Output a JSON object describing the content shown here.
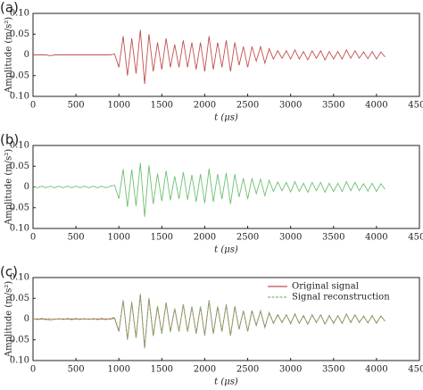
{
  "chart_data": [
    {
      "type": "line",
      "panel_label": "(a)",
      "x_label": "t (μs)",
      "y_label": "Amplitude (m/s²)",
      "xlim": [
        0,
        4500
      ],
      "ylim": [
        -0.1,
        0.1
      ],
      "xticks": [
        0,
        500,
        1000,
        1500,
        2000,
        2500,
        3000,
        3500,
        4000,
        4500
      ],
      "yticks": [
        {
          "value": 0.1,
          "label": "0.10"
        },
        0.05,
        0,
        {
          "value": -0.05,
          "label": "0.05"
        },
        {
          "value": -0.1,
          "label": "0.10"
        }
      ],
      "x": [
        0,
        50,
        100,
        150,
        200,
        250,
        300,
        350,
        400,
        450,
        500,
        550,
        600,
        650,
        700,
        750,
        800,
        850,
        900,
        950,
        1000,
        1050,
        1100,
        1150,
        1200,
        1250,
        1300,
        1350,
        1400,
        1450,
        1500,
        1550,
        1600,
        1650,
        1700,
        1750,
        1800,
        1850,
        1900,
        1950,
        2000,
        2050,
        2100,
        2150,
        2200,
        2250,
        2300,
        2350,
        2400,
        2450,
        2500,
        2550,
        2600,
        2650,
        2700,
        2750,
        2800,
        2850,
        2900,
        2950,
        3000,
        3050,
        3100,
        3150,
        3200,
        3250,
        3300,
        3350,
        3400,
        3450,
        3500,
        3550,
        3600,
        3650,
        3700,
        3750,
        3800,
        3850,
        3900,
        3950,
        4000,
        4050,
        4100
      ],
      "series": [
        {
          "color": "#c0504d",
          "values": [
            0,
            0,
            0,
            0,
            -0.002,
            0,
            0,
            0,
            0,
            0,
            0,
            0,
            0,
            0,
            0,
            0,
            0,
            0,
            0,
            0.002,
            -0.03,
            0.045,
            -0.05,
            0.04,
            -0.045,
            0.06,
            -0.07,
            0.05,
            -0.04,
            0.03,
            -0.035,
            0.04,
            -0.03,
            0.025,
            -0.03,
            0.035,
            -0.03,
            0.03,
            -0.035,
            0.03,
            -0.04,
            0.045,
            -0.035,
            0.03,
            -0.03,
            0.035,
            -0.04,
            0.03,
            -0.025,
            0.02,
            -0.03,
            0.02,
            -0.015,
            0.02,
            -0.02,
            0.015,
            -0.01,
            0.01,
            -0.008,
            0.01,
            -0.01,
            0.012,
            -0.01,
            0.008,
            -0.012,
            0.01,
            -0.008,
            0.01,
            -0.012,
            0.008,
            -0.01,
            0.008,
            -0.01,
            0.012,
            -0.008,
            0.01,
            -0.008,
            0.007,
            -0.009,
            0.008,
            -0.01,
            0.007,
            -0.005
          ]
        }
      ],
      "grid": false
    },
    {
      "type": "line",
      "panel_label": "(b)",
      "x_label": "t (μs)",
      "y_label": "Amplitude (m/s²)",
      "xlim": [
        0,
        4500
      ],
      "ylim": [
        -0.1,
        0.1
      ],
      "xticks": [
        0,
        500,
        1000,
        1500,
        2000,
        2500,
        3000,
        3500,
        4000,
        4500
      ],
      "yticks": [
        {
          "value": 0.1,
          "label": "0.10"
        },
        0.05,
        0,
        {
          "value": -0.05,
          "label": "0.05"
        },
        {
          "value": -0.1,
          "label": "0.10"
        }
      ],
      "x": [
        0,
        50,
        100,
        150,
        200,
        250,
        300,
        350,
        400,
        450,
        500,
        550,
        600,
        650,
        700,
        750,
        800,
        850,
        900,
        950,
        1000,
        1050,
        1100,
        1150,
        1200,
        1250,
        1300,
        1350,
        1400,
        1450,
        1500,
        1550,
        1600,
        1650,
        1700,
        1750,
        1800,
        1850,
        1900,
        1950,
        2000,
        2050,
        2100,
        2150,
        2200,
        2250,
        2300,
        2350,
        2400,
        2450,
        2500,
        2550,
        2600,
        2650,
        2700,
        2750,
        2800,
        2850,
        2900,
        2950,
        3000,
        3050,
        3100,
        3150,
        3200,
        3250,
        3300,
        3350,
        3400,
        3450,
        3500,
        3550,
        3600,
        3650,
        3700,
        3750,
        3800,
        3850,
        3900,
        3950,
        4000,
        4050,
        4100
      ],
      "series": [
        {
          "color": "#6fbf73",
          "values": [
            0.002,
            -0.002,
            0.002,
            -0.002,
            0.002,
            -0.002,
            0.002,
            -0.002,
            0.002,
            -0.002,
            0.002,
            -0.002,
            0.002,
            -0.002,
            0.002,
            -0.002,
            0.002,
            -0.002,
            0.002,
            0.004,
            -0.028,
            0.043,
            -0.048,
            0.042,
            -0.046,
            0.058,
            -0.072,
            0.052,
            -0.041,
            0.032,
            -0.034,
            0.039,
            -0.032,
            0.026,
            -0.029,
            0.036,
            -0.031,
            0.029,
            -0.036,
            0.031,
            -0.039,
            0.044,
            -0.036,
            0.031,
            -0.029,
            0.034,
            -0.041,
            0.031,
            -0.024,
            0.021,
            -0.029,
            0.021,
            -0.016,
            0.019,
            -0.021,
            0.016,
            -0.011,
            0.012,
            -0.009,
            0.011,
            -0.012,
            0.013,
            -0.011,
            0.009,
            -0.013,
            0.011,
            -0.009,
            0.011,
            -0.013,
            0.009,
            -0.011,
            0.009,
            -0.011,
            0.013,
            -0.009,
            0.011,
            -0.009,
            0.008,
            -0.01,
            0.009,
            -0.011,
            0.008,
            -0.006
          ]
        }
      ],
      "grid": false
    },
    {
      "type": "line",
      "panel_label": "(c)",
      "x_label": "t (μs)",
      "y_label": "Amplitude (m/s²)",
      "xlim": [
        0,
        4500
      ],
      "ylim": [
        -0.1,
        0.1
      ],
      "xticks": [
        0,
        500,
        1000,
        1500,
        2000,
        2500,
        3000,
        3500,
        4000,
        4500
      ],
      "yticks": [
        {
          "value": 0.1,
          "label": "0.10"
        },
        0.05,
        0,
        {
          "value": -0.05,
          "label": "0.05"
        },
        {
          "value": -0.1,
          "label": "0.10"
        }
      ],
      "legend": "upper right",
      "x": [
        0,
        50,
        100,
        150,
        200,
        250,
        300,
        350,
        400,
        450,
        500,
        550,
        600,
        650,
        700,
        750,
        800,
        850,
        900,
        950,
        1000,
        1050,
        1100,
        1150,
        1200,
        1250,
        1300,
        1350,
        1400,
        1450,
        1500,
        1550,
        1600,
        1650,
        1700,
        1750,
        1800,
        1850,
        1900,
        1950,
        2000,
        2050,
        2100,
        2150,
        2200,
        2250,
        2300,
        2350,
        2400,
        2450,
        2500,
        2550,
        2600,
        2650,
        2700,
        2750,
        2800,
        2850,
        2900,
        2950,
        3000,
        3050,
        3100,
        3150,
        3200,
        3250,
        3300,
        3350,
        3400,
        3450,
        3500,
        3550,
        3600,
        3650,
        3700,
        3750,
        3800,
        3850,
        3900,
        3950,
        4000,
        4050,
        4100
      ],
      "series": [
        {
          "name": "Original signal",
          "color": "#c0504d",
          "dash": false,
          "values": [
            0,
            0,
            0,
            0,
            -0.002,
            0,
            0,
            0,
            0,
            0,
            0,
            0,
            0,
            0,
            0,
            0,
            0,
            0,
            0,
            0.002,
            -0.03,
            0.045,
            -0.05,
            0.04,
            -0.045,
            0.06,
            -0.07,
            0.05,
            -0.04,
            0.03,
            -0.035,
            0.04,
            -0.03,
            0.025,
            -0.03,
            0.035,
            -0.03,
            0.03,
            -0.035,
            0.03,
            -0.04,
            0.045,
            -0.035,
            0.03,
            -0.03,
            0.035,
            -0.04,
            0.03,
            -0.025,
            0.02,
            -0.03,
            0.02,
            -0.015,
            0.02,
            -0.02,
            0.015,
            -0.01,
            0.01,
            -0.008,
            0.01,
            -0.01,
            0.012,
            -0.01,
            0.008,
            -0.012,
            0.01,
            -0.008,
            0.01,
            -0.012,
            0.008,
            -0.01,
            0.008,
            -0.01,
            0.012,
            -0.008,
            0.01,
            -0.008,
            0.007,
            -0.009,
            0.008,
            -0.01,
            0.007,
            -0.005
          ]
        },
        {
          "name": "Signal reconstruction",
          "color": "#6fbf73",
          "dash": true,
          "values": [
            0.002,
            -0.002,
            0.002,
            -0.002,
            0.002,
            -0.002,
            0.002,
            -0.002,
            0.002,
            -0.002,
            0.002,
            -0.002,
            0.002,
            -0.002,
            0.002,
            -0.002,
            0.002,
            -0.002,
            0.002,
            0.004,
            -0.028,
            0.043,
            -0.048,
            0.042,
            -0.046,
            0.058,
            -0.072,
            0.052,
            -0.041,
            0.032,
            -0.034,
            0.039,
            -0.032,
            0.026,
            -0.029,
            0.036,
            -0.031,
            0.029,
            -0.036,
            0.031,
            -0.039,
            0.044,
            -0.036,
            0.031,
            -0.029,
            0.034,
            -0.041,
            0.031,
            -0.024,
            0.021,
            -0.029,
            0.021,
            -0.016,
            0.019,
            -0.021,
            0.016,
            -0.011,
            0.012,
            -0.009,
            0.011,
            -0.012,
            0.013,
            -0.011,
            0.009,
            -0.013,
            0.011,
            -0.009,
            0.011,
            -0.013,
            0.009,
            -0.011,
            0.009,
            -0.011,
            0.013,
            -0.009,
            0.011,
            -0.009,
            0.008,
            -0.01,
            0.009,
            -0.011,
            0.008,
            -0.006
          ]
        }
      ],
      "grid": false
    }
  ]
}
